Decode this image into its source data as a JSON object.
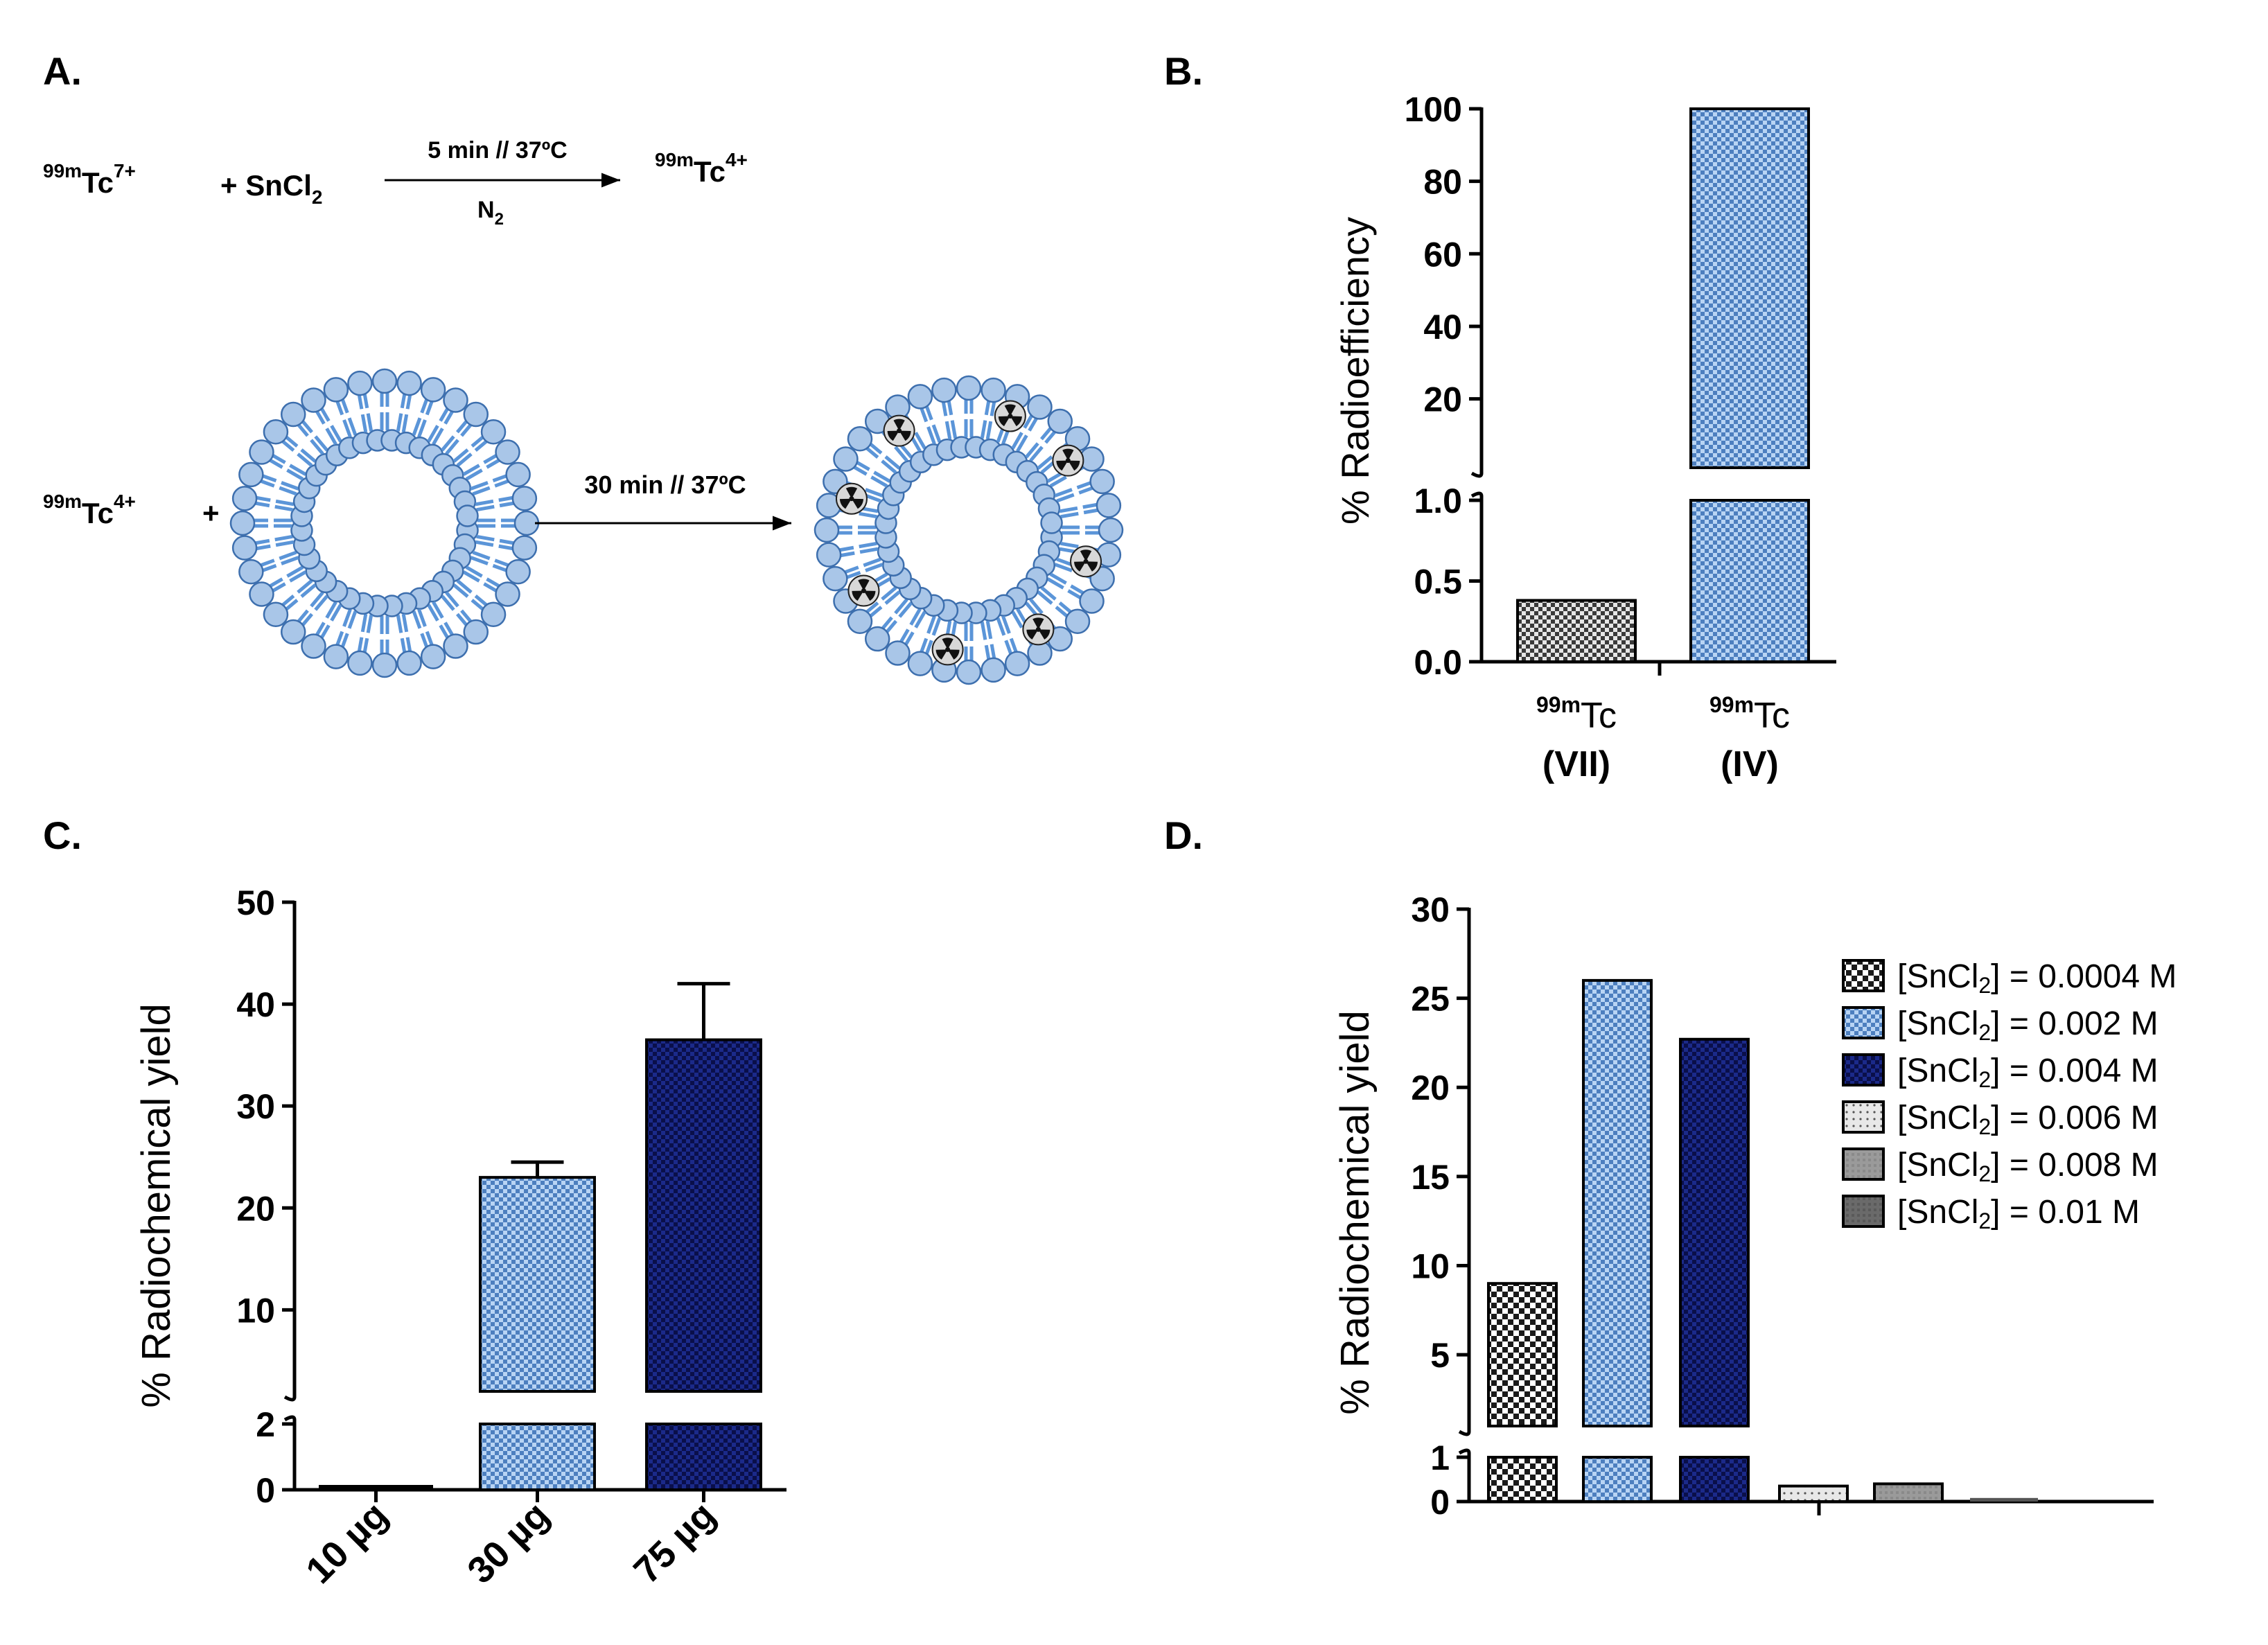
{
  "panel_labels": {
    "a": "A.",
    "b": "B.",
    "c": "C.",
    "d": "D."
  },
  "scheme": {
    "eq1": {
      "reactant1_sup": "99m",
      "reactant1_base": "Tc",
      "reactant1_charge": "7+",
      "plus_reagent": "+ SnCl",
      "reagent_sub": "2",
      "condition_top": "5 min // 37ºC",
      "condition_bottom_base": "N",
      "condition_bottom_sub": "2",
      "product_sup": "99m",
      "product_base": "Tc",
      "product_charge": "4+"
    },
    "eq2": {
      "reactant_sup": "99m",
      "reactant_base": "Tc",
      "reactant_charge": "4+",
      "plus": "+",
      "condition": "30 min // 37ºC"
    },
    "colors": {
      "lipid_fill": "#a9c6e8",
      "lipid_stroke": "#3d6fae",
      "lipid_tail": "#5b95d8"
    }
  },
  "chart_data": [
    {
      "id": "B",
      "type": "bar",
      "categories": [
        {
          "sup": "99m",
          "base": "Tc",
          "ox": "(VII)"
        },
        {
          "sup": "99m",
          "base": "Tc",
          "ox": "(IV)"
        }
      ],
      "values": [
        0.38,
        100
      ],
      "ylabel": "% Radioefficiency",
      "axis_break": {
        "lower": [
          0,
          1.0
        ],
        "upper": [
          1.0,
          100
        ]
      },
      "lower_ticks": [
        "0.0",
        "0.5",
        "1.0"
      ],
      "upper_ticks": [
        "20",
        "40",
        "60",
        "80",
        "100"
      ],
      "patterns": [
        "checker-grey",
        "checker-lightblue"
      ]
    },
    {
      "id": "C",
      "type": "bar",
      "categories": [
        "10 µg",
        "30 µg",
        "75 µg"
      ],
      "values": [
        0.1,
        23,
        36.5
      ],
      "errors": [
        0,
        1.5,
        5.5
      ],
      "ylabel": "% Radiochemical  yield",
      "axis_break": {
        "lower": [
          0,
          2
        ],
        "upper": [
          2,
          50
        ]
      },
      "lower_ticks": [
        "0",
        "2"
      ],
      "upper_ticks": [
        "10",
        "20",
        "30",
        "40",
        "50"
      ],
      "patterns": [
        "checker-lightblue",
        "checker-lightblue",
        "checker-navy"
      ]
    },
    {
      "id": "D",
      "type": "bar",
      "series": [
        {
          "name": "[SnCl2] = 0.0004 M",
          "label_pre": "[SnCl",
          "label_sub": "2",
          "label_post": "] = 0.0004 M",
          "value": 9,
          "pattern": "checker-bw"
        },
        {
          "name": "[SnCl2] = 0.002 M",
          "label_pre": "[SnCl",
          "label_sub": "2",
          "label_post": "] = 0.002 M",
          "value": 26,
          "pattern": "checker-lightblue"
        },
        {
          "name": "[SnCl2] = 0.004 M",
          "label_pre": "[SnCl",
          "label_sub": "2",
          "label_post": "] = 0.004 M",
          "value": 22.7,
          "pattern": "checker-navy"
        },
        {
          "name": "[SnCl2] = 0.006 M",
          "label_pre": "[SnCl",
          "label_sub": "2",
          "label_post": "] = 0.006 M",
          "value": 0.35,
          "pattern": "dots-light"
        },
        {
          "name": "[SnCl2] = 0.008 M",
          "label_pre": "[SnCl",
          "label_sub": "2",
          "label_post": "] = 0.008 M",
          "value": 0.4,
          "pattern": "grey-mid"
        },
        {
          "name": "[SnCl2] = 0.01 M",
          "label_pre": "[SnCl",
          "label_sub": "2",
          "label_post": "] = 0.01 M",
          "value": 0.05,
          "pattern": "grey-dark"
        }
      ],
      "ylabel": "% Radiochemical  yield",
      "axis_break": {
        "lower": [
          0,
          1
        ],
        "upper": [
          1,
          30
        ]
      },
      "lower_ticks": [
        "0",
        "1"
      ],
      "upper_ticks": [
        "5",
        "10",
        "15",
        "20",
        "25",
        "30"
      ],
      "legend_position": "right"
    }
  ]
}
